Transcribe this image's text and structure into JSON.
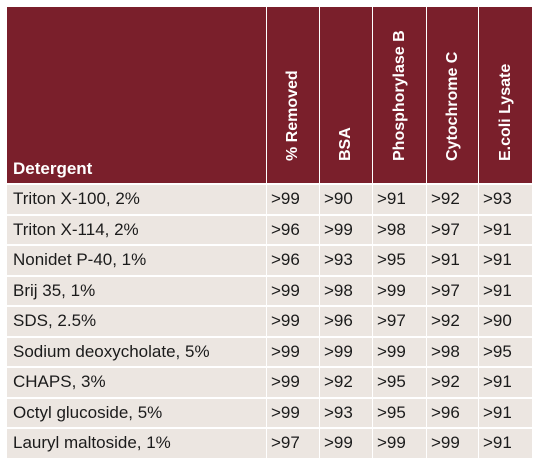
{
  "header": {
    "detergent": "Detergent",
    "columns": [
      "% Removed",
      "BSA",
      "Phosphorylase B",
      "Cytochrome C",
      "E.coli Lysate"
    ]
  },
  "rows": [
    {
      "name": "Triton X-100, 2%",
      "values": [
        ">99",
        ">90",
        ">91",
        ">92",
        ">93"
      ]
    },
    {
      "name": "Triton X-114, 2%",
      "values": [
        ">96",
        ">99",
        ">98",
        ">97",
        ">91"
      ]
    },
    {
      "name": "Nonidet P-40, 1%",
      "values": [
        ">96",
        ">93",
        ">95",
        ">91",
        ">91"
      ]
    },
    {
      "name": "Brij 35, 1%",
      "values": [
        ">99",
        ">98",
        ">99",
        ">97",
        ">91"
      ]
    },
    {
      "name": "SDS, 2.5%",
      "values": [
        ">99",
        ">96",
        ">97",
        ">92",
        ">90"
      ]
    },
    {
      "name": "Sodium deoxycholate, 5%",
      "values": [
        ">99",
        ">99",
        ">99",
        ">98",
        ">95"
      ]
    },
    {
      "name": "CHAPS, 3%",
      "values": [
        ">99",
        ">92",
        ">95",
        ">92",
        ">91"
      ]
    },
    {
      "name": "Octyl glucoside, 5%",
      "values": [
        ">99",
        ">93",
        ">95",
        ">96",
        ">91"
      ]
    },
    {
      "name": "Lauryl maltoside, 1%",
      "values": [
        ">97",
        ">99",
        ">99",
        ">99",
        ">91"
      ]
    }
  ],
  "colors": {
    "header_bg": "#7a1f2b",
    "row_bg": "#ece6e1"
  }
}
